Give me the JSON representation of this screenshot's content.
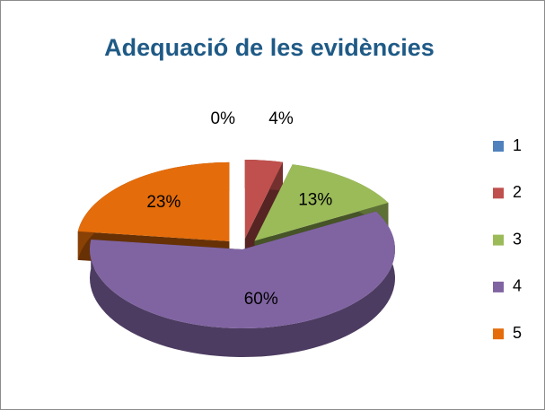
{
  "chart_data": {
    "type": "pie3d",
    "title": "Adequació de les evidències",
    "categories": [
      "1",
      "2",
      "3",
      "4",
      "5"
    ],
    "values": [
      0,
      4,
      13,
      60,
      23
    ],
    "value_labels": [
      "0%",
      "4%",
      "13%",
      "60%",
      "23%"
    ],
    "colors": [
      "#4f81bd",
      "#c0504d",
      "#9bbb59",
      "#8064a2",
      "#e46c0a"
    ],
    "legend": "right"
  }
}
